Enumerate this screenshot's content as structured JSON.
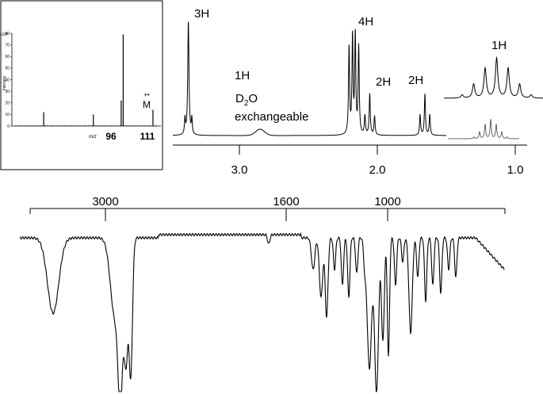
{
  "chart_data": [
    {
      "type": "bar",
      "panel": "mass-spectrum",
      "ylabel": "Intensity",
      "yscale_note": "x10³",
      "xlabel": "m/z",
      "ylim": [
        0,
        80
      ],
      "yticks": [
        "0",
        "10",
        "20",
        "30",
        "40",
        "50",
        "60",
        "70",
        "80"
      ],
      "peaks": [
        {
          "mz": 56,
          "intensity": 12
        },
        {
          "mz": 81,
          "intensity": 10
        },
        {
          "mz": 95,
          "intensity": 22
        },
        {
          "mz": 96,
          "intensity": 79
        },
        {
          "mz": 111,
          "intensity": 14
        }
      ],
      "labels": [
        {
          "text": "96",
          "at_mz": 96
        },
        {
          "text": "111",
          "at_mz": 111
        }
      ],
      "molecular_ion_label": "M",
      "radical_cation_symbol": "+•"
    },
    {
      "type": "line",
      "panel": "1H-NMR",
      "xlabel": "",
      "xlim": [
        3.9,
        0.8
      ],
      "xticks": [
        "3.0",
        "2.0",
        "1.0"
      ],
      "signals": [
        {
          "ppm": 3.37,
          "integration": "3H",
          "multiplicity": "singlet"
        },
        {
          "ppm": 2.85,
          "integration": "1H",
          "note": "D₂O exchangeable",
          "multiplicity": "broad"
        },
        {
          "ppm": 2.15,
          "integration": "4H",
          "multiplicity": "multiplet"
        },
        {
          "ppm": 2.05,
          "integration": "2H",
          "multiplicity": "triplet"
        },
        {
          "ppm": 1.65,
          "integration": "2H",
          "multiplicity": "triplet"
        },
        {
          "ppm": 1.17,
          "integration": "1H",
          "multiplicity": "septet",
          "inset_expanded": true
        }
      ],
      "annotations": [
        "3H",
        "1H",
        "D2O",
        "exchangeable",
        "4H",
        "2H",
        "2H",
        "1H"
      ]
    },
    {
      "type": "line",
      "panel": "IR-spectrum",
      "xlim": [
        4000,
        400
      ],
      "xticks": [
        "3000",
        "1600",
        "1000"
      ],
      "bands_cm1": [
        {
          "wavenumber": 3400,
          "shape": "broad"
        },
        {
          "wavenumber": 2950,
          "shape": "strong"
        },
        {
          "wavenumber": 2870,
          "shape": "strong"
        },
        {
          "wavenumber": 1465,
          "shape": "medium"
        },
        {
          "wavenumber": 1370,
          "shape": "medium"
        },
        {
          "wavenumber": 1100,
          "shape": "strong"
        },
        {
          "wavenumber": 1050,
          "shape": "strong"
        }
      ]
    }
  ]
}
